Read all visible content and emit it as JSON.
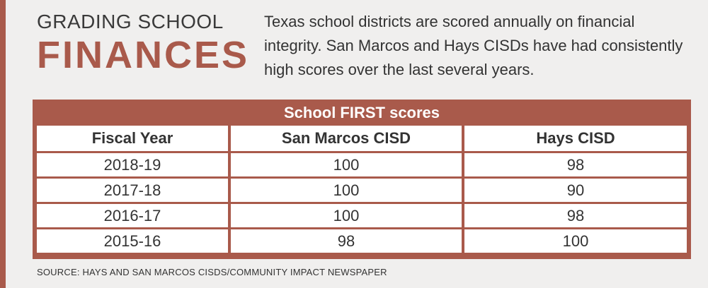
{
  "header": {
    "kicker": "GRADING SCHOOL",
    "headline": "FINANCES",
    "intro": "Texas school districts are scored annually on financial integrity. San Marcos and Hays CISDs have had consistently high scores over the last several years."
  },
  "colors": {
    "accent": "#a95a4b",
    "background": "#f0efee"
  },
  "chart_data": {
    "type": "table",
    "title": "School FIRST scores",
    "columns": [
      "Fiscal Year",
      "San Marcos CISD",
      "Hays CISD"
    ],
    "rows": [
      [
        "2018-19",
        "100",
        "98"
      ],
      [
        "2017-18",
        "100",
        "90"
      ],
      [
        "2016-17",
        "100",
        "98"
      ],
      [
        "2015-16",
        "98",
        "100"
      ]
    ]
  },
  "footer": {
    "source": "SOURCE: HAYS AND SAN MARCOS CISDS/COMMUNITY IMPACT NEWSPAPER"
  }
}
